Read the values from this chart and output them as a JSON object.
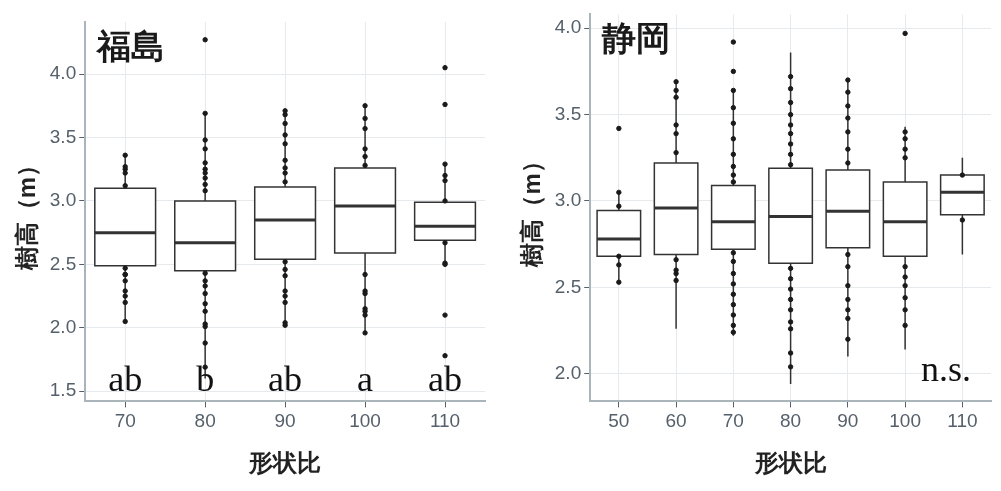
{
  "chart_data": [
    {
      "type": "box",
      "title": "福島",
      "xlabel": "形状比",
      "ylabel": "樹高（m）",
      "categories": [
        "70",
        "80",
        "90",
        "100",
        "110"
      ],
      "boxes": [
        {
          "low": 2.05,
          "q1": 2.49,
          "median": 2.75,
          "q3": 3.1,
          "high": 3.36
        },
        {
          "low": 1.6,
          "q1": 2.45,
          "median": 2.67,
          "q3": 3.0,
          "high": 3.69
        },
        {
          "low": 2.03,
          "q1": 2.54,
          "median": 2.85,
          "q3": 3.11,
          "high": 3.7
        },
        {
          "low": 1.96,
          "q1": 2.59,
          "median": 2.96,
          "q3": 3.26,
          "high": 3.75
        },
        {
          "low": 2.51,
          "q1": 2.69,
          "median": 2.8,
          "q3": 2.99,
          "high": 3.29,
          "outliers": [
            4.05,
            3.76,
            2.1,
            1.78
          ]
        }
      ],
      "series": [
        {
          "type": "scatter",
          "color": "#1a1a1a",
          "x": [
            "70",
            "70",
            "70",
            "70",
            "70",
            "70",
            "70",
            "70",
            "70",
            "70",
            "70",
            "70",
            "70",
            "80",
            "80",
            "80",
            "80",
            "80",
            "80",
            "80",
            "80",
            "80",
            "80",
            "80",
            "80",
            "80",
            "80",
            "80",
            "80",
            "80",
            "80",
            "80",
            "80",
            "90",
            "90",
            "90",
            "90",
            "90",
            "90",
            "90",
            "90",
            "90",
            "90",
            "90",
            "90",
            "90",
            "90",
            "90",
            "90",
            "90",
            "100",
            "100",
            "100",
            "100",
            "100",
            "100",
            "100",
            "100",
            "100",
            "100",
            "100",
            "100",
            "100",
            "110",
            "110",
            "110",
            "110",
            "110",
            "110",
            "110"
          ],
          "values": [
            3.36,
            3.27,
            3.25,
            3.22,
            3.12,
            2.47,
            2.42,
            2.42,
            2.37,
            2.29,
            2.25,
            2.2,
            2.05,
            4.27,
            3.69,
            3.48,
            3.41,
            3.3,
            3.25,
            3.22,
            3.18,
            3.13,
            3.08,
            2.43,
            2.37,
            2.33,
            2.27,
            2.19,
            2.13,
            2.03,
            2.01,
            1.88,
            1.69,
            3.71,
            3.68,
            3.61,
            3.52,
            3.45,
            3.32,
            3.26,
            3.22,
            3.15,
            2.52,
            2.46,
            2.41,
            2.29,
            2.25,
            2.2,
            2.04,
            2.02,
            3.75,
            3.65,
            3.57,
            3.41,
            3.35,
            3.28,
            2.42,
            2.29,
            2.27,
            2.15,
            2.13,
            2.1,
            1.96,
            3.29,
            3.2,
            3.16,
            3.0,
            2.67,
            2.51,
            2.5
          ]
        }
      ],
      "ylim": [
        1.42,
        4.41
      ],
      "yticks": [
        {
          "value": 1.5,
          "label": "1.5"
        },
        {
          "value": 2,
          "label": "2.0"
        },
        {
          "value": 2.5,
          "label": "2.5"
        },
        {
          "value": 3,
          "label": "3.0"
        },
        {
          "value": 3.5,
          "label": "3.5"
        },
        {
          "value": 4,
          "label": "4.0"
        }
      ],
      "grid": true,
      "marker": "circle",
      "annotations": [
        "ab",
        "b",
        "ab",
        "a",
        "ab"
      ]
    },
    {
      "type": "box",
      "title": "静岡",
      "xlabel": "形状比",
      "ylabel": "樹高（m）",
      "categories": [
        "50",
        "60",
        "70",
        "80",
        "90",
        "100",
        "110"
      ],
      "boxes": [
        {
          "low": 2.53,
          "q1": 2.68,
          "median": 2.78,
          "q3": 2.945,
          "high": 3.05,
          "outliers": [
            3.42
          ]
        },
        {
          "low": 2.26,
          "q1": 2.69,
          "median": 2.96,
          "q3": 3.22,
          "high": 3.69
        },
        {
          "low": 2.22,
          "q1": 2.72,
          "median": 2.88,
          "q3": 3.09,
          "high": 3.64,
          "outliers": [
            3.92,
            3.75
          ]
        },
        {
          "low": 1.94,
          "q1": 2.64,
          "median": 2.91,
          "q3": 3.19,
          "high": 3.86
        },
        {
          "low": 2.1,
          "q1": 2.73,
          "median": 2.94,
          "q3": 3.18,
          "high": 3.71
        },
        {
          "low": 2.14,
          "q1": 2.68,
          "median": 2.88,
          "q3": 3.11,
          "high": 3.43,
          "outliers": [
            3.97
          ]
        },
        {
          "low": 2.69,
          "q1": 2.92,
          "median": 3.05,
          "q3": 3.15,
          "high": 3.25
        }
      ],
      "series": [
        {
          "type": "scatter",
          "color": "#1a1a1a",
          "x": [
            "50",
            "50",
            "50",
            "50",
            "50",
            "60",
            "60",
            "60",
            "60",
            "60",
            "60",
            "60",
            "60",
            "60",
            "60",
            "70",
            "70",
            "70",
            "70",
            "70",
            "70",
            "70",
            "70",
            "70",
            "70",
            "70",
            "70",
            "70",
            "70",
            "70",
            "70",
            "70",
            "80",
            "80",
            "80",
            "80",
            "80",
            "80",
            "80",
            "80",
            "80",
            "80",
            "80",
            "80",
            "80",
            "80",
            "80",
            "80",
            "80",
            "80",
            "90",
            "90",
            "90",
            "90",
            "90",
            "90",
            "90",
            "90",
            "90",
            "90",
            "90",
            "90",
            "90",
            "90",
            "100",
            "100",
            "100",
            "100",
            "100",
            "100",
            "100",
            "100",
            "100",
            "100",
            "110",
            "110"
          ],
          "values": [
            3.05,
            2.97,
            2.68,
            2.63,
            2.53,
            3.69,
            3.64,
            3.6,
            3.44,
            3.39,
            3.28,
            2.66,
            2.6,
            2.58,
            2.54,
            3.64,
            3.54,
            3.45,
            3.36,
            3.27,
            3.2,
            3.15,
            3.11,
            2.7,
            2.65,
            2.58,
            2.52,
            2.46,
            2.4,
            2.34,
            2.28,
            2.24,
            3.72,
            3.65,
            3.57,
            3.5,
            3.44,
            3.39,
            3.33,
            3.27,
            3.21,
            2.61,
            2.55,
            2.49,
            2.43,
            2.37,
            2.3,
            2.26,
            2.12,
            2.04,
            3.7,
            3.63,
            3.55,
            3.48,
            3.4,
            3.3,
            3.22,
            2.69,
            2.62,
            2.51,
            2.43,
            2.37,
            2.32,
            2.2,
            3.4,
            3.36,
            3.3,
            3.25,
            2.62,
            2.56,
            2.51,
            2.44,
            2.37,
            2.28,
            3.15,
            2.89
          ]
        }
      ],
      "ylim": [
        1.84,
        4.08
      ],
      "yticks": [
        {
          "value": 2,
          "label": "2.0"
        },
        {
          "value": 2.5,
          "label": "2.5"
        },
        {
          "value": 3,
          "label": "3.0"
        },
        {
          "value": 3.5,
          "label": "3.5"
        },
        {
          "value": 4,
          "label": "4.0"
        }
      ],
      "grid": true,
      "marker": "circle",
      "annotations": [
        "n.s."
      ]
    }
  ]
}
